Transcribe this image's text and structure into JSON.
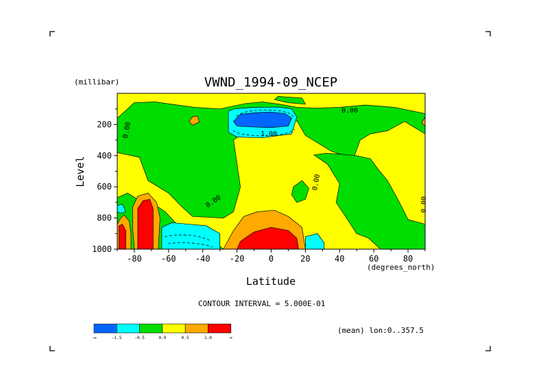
{
  "chart_data": {
    "type": "heatmap",
    "title": "VWND_1994-09_NCEP",
    "ylabel": "Level",
    "yunit": "(millibar)",
    "xlabel": "Latitude",
    "xunit": "(degrees_north)",
    "xlim": [
      -90,
      90
    ],
    "ylim": [
      1000,
      0
    ],
    "xticks": [
      -80,
      -60,
      -40,
      -20,
      0,
      20,
      40,
      60,
      80
    ],
    "yticks": [
      200,
      400,
      600,
      800,
      1000
    ],
    "contour_interval_text": "CONTOUR INTERVAL = 5.000E-01",
    "mean_text": "(mean) lon:0..357.5",
    "contour_labels": [
      "0.00",
      "0.00",
      "1.00",
      "0.00",
      "0.00",
      "0.00"
    ],
    "colorbar": {
      "colors": [
        "#0066ff",
        "#00ffff",
        "#00dd00",
        "#ffff00",
        "#ffaa00",
        "#ff0000"
      ],
      "labels": [
        "-∞",
        "-1.5",
        "-0.5",
        "0.0",
        "0.5",
        "1.0",
        "∞"
      ]
    },
    "regions": [
      {
        "level": "green",
        "color": "#00dd00",
        "points": [
          [
            -90,
            380
          ],
          [
            -77,
            410
          ],
          [
            -72,
            560
          ],
          [
            -60,
            640
          ],
          [
            -52,
            730
          ],
          [
            -46,
            790
          ],
          [
            -28,
            800
          ],
          [
            -22,
            760
          ],
          [
            -18,
            600
          ],
          [
            -22,
            300
          ],
          [
            -12,
            220
          ],
          [
            -5,
            240
          ],
          [
            3,
            210
          ],
          [
            15,
            175
          ],
          [
            20,
            270
          ],
          [
            35,
            370
          ],
          [
            48,
            420
          ],
          [
            52,
            300
          ],
          [
            58,
            260
          ],
          [
            68,
            240
          ],
          [
            78,
            180
          ],
          [
            90,
            260
          ],
          [
            90,
            130
          ],
          [
            72,
            90
          ],
          [
            55,
            75
          ],
          [
            40,
            90
          ],
          [
            26,
            95
          ],
          [
            15,
            90
          ],
          [
            5,
            70
          ],
          [
            -5,
            55
          ],
          [
            -15,
            65
          ],
          [
            -30,
            100
          ],
          [
            -45,
            90
          ],
          [
            -68,
            55
          ],
          [
            -80,
            60
          ],
          [
            -86,
            120
          ],
          [
            -90,
            160
          ]
        ]
      },
      {
        "level": "green",
        "color": "#00dd00",
        "points": [
          [
            25,
            395
          ],
          [
            33,
            455
          ],
          [
            40,
            580
          ],
          [
            38,
            700
          ],
          [
            44,
            800
          ],
          [
            50,
            900
          ],
          [
            57,
            930
          ],
          [
            64,
            1000
          ],
          [
            90,
            1000
          ],
          [
            90,
            840
          ],
          [
            80,
            810
          ],
          [
            75,
            700
          ],
          [
            68,
            560
          ],
          [
            62,
            480
          ],
          [
            58,
            420
          ],
          [
            50,
            400
          ],
          [
            40,
            390
          ],
          [
            32,
            385
          ]
        ]
      },
      {
        "level": "green",
        "color": "#00dd00",
        "points": [
          [
            -90,
            670
          ],
          [
            -84,
            640
          ],
          [
            -78,
            680
          ],
          [
            -70,
            700
          ],
          [
            -62,
            760
          ],
          [
            -56,
            830
          ],
          [
            -50,
            900
          ],
          [
            -40,
            930
          ],
          [
            -32,
            960
          ],
          [
            -28,
            1000
          ],
          [
            -90,
            1000
          ]
        ]
      },
      {
        "level": "green",
        "color": "#00dd00",
        "points": [
          [
            13,
            600
          ],
          [
            18,
            560
          ],
          [
            22,
            610
          ],
          [
            20,
            680
          ],
          [
            15,
            700
          ],
          [
            12,
            650
          ]
        ]
      },
      {
        "level": "green",
        "color": "#00dd00",
        "points": [
          [
            4,
            20
          ],
          [
            18,
            30
          ],
          [
            20,
            70
          ],
          [
            10,
            60
          ],
          [
            2,
            40
          ]
        ]
      },
      {
        "level": "cyan",
        "color": "#00ffff",
        "points": [
          [
            -25,
            115
          ],
          [
            -22,
            100
          ],
          [
            -10,
            90
          ],
          [
            5,
            88
          ],
          [
            12,
            100
          ],
          [
            15,
            150
          ],
          [
            12,
            260
          ],
          [
            -5,
            285
          ],
          [
            -20,
            280
          ],
          [
            -25,
            250
          ]
        ]
      },
      {
        "level": "cyan",
        "color": "#00ffff",
        "points": [
          [
            -64,
            860
          ],
          [
            -58,
            830
          ],
          [
            -48,
            840
          ],
          [
            -38,
            850
          ],
          [
            -30,
            900
          ],
          [
            -30,
            1000
          ],
          [
            -64,
            1000
          ]
        ]
      },
      {
        "level": "cyan",
        "color": "#00ffff",
        "points": [
          [
            -90,
            720
          ],
          [
            -87,
            710
          ],
          [
            -85,
            760
          ],
          [
            -88,
            770
          ],
          [
            -90,
            760
          ]
        ]
      },
      {
        "level": "cyan",
        "color": "#00ffff",
        "points": [
          [
            20,
            920
          ],
          [
            27,
            900
          ],
          [
            31,
            960
          ],
          [
            31,
            1000
          ],
          [
            20,
            1000
          ]
        ]
      },
      {
        "level": "blue",
        "color": "#0066ff",
        "points": [
          [
            -22,
            180
          ],
          [
            -18,
            135
          ],
          [
            -10,
            125
          ],
          [
            0,
            120
          ],
          [
            8,
            130
          ],
          [
            12,
            160
          ],
          [
            10,
            210
          ],
          [
            0,
            220
          ],
          [
            -12,
            215
          ],
          [
            -20,
            210
          ]
        ]
      },
      {
        "level": "orange",
        "color": "#ffaa00",
        "points": [
          [
            -28,
            1000
          ],
          [
            -22,
            880
          ],
          [
            -16,
            790
          ],
          [
            -8,
            760
          ],
          [
            2,
            750
          ],
          [
            10,
            790
          ],
          [
            18,
            860
          ],
          [
            20,
            1000
          ]
        ]
      },
      {
        "level": "orange",
        "color": "#ffaa00",
        "points": [
          [
            -88,
            800
          ],
          [
            -86,
            780
          ],
          [
            -83,
            820
          ],
          [
            -82,
            900
          ],
          [
            -82,
            1000
          ],
          [
            -90,
            1000
          ],
          [
            -90,
            840
          ]
        ]
      },
      {
        "level": "orange",
        "color": "#ffaa00",
        "points": [
          [
            -81,
            730
          ],
          [
            -78,
            660
          ],
          [
            -72,
            640
          ],
          [
            -67,
            700
          ],
          [
            -65,
            800
          ],
          [
            -66,
            1000
          ],
          [
            -80,
            1000
          ],
          [
            -81,
            860
          ]
        ]
      },
      {
        "level": "orange",
        "color": "#ffaa00",
        "points": [
          [
            -48,
            180
          ],
          [
            -46,
            150
          ],
          [
            -43,
            145
          ],
          [
            -42,
            185
          ],
          [
            -46,
            205
          ]
        ]
      },
      {
        "level": "orange",
        "color": "#ffaa00",
        "points": [
          [
            88,
            190
          ],
          [
            90,
            150
          ],
          [
            90,
            210
          ]
        ]
      },
      {
        "level": "red",
        "color": "#ff0000",
        "points": [
          [
            -20,
            1000
          ],
          [
            -18,
            950
          ],
          [
            -10,
            890
          ],
          [
            0,
            860
          ],
          [
            10,
            880
          ],
          [
            15,
            930
          ],
          [
            16,
            1000
          ]
        ]
      },
      {
        "level": "red",
        "color": "#ff0000",
        "points": [
          [
            -89,
            850
          ],
          [
            -87,
            840
          ],
          [
            -85,
            880
          ],
          [
            -85,
            1000
          ],
          [
            -89,
            1000
          ]
        ]
      },
      {
        "level": "red",
        "color": "#ff0000",
        "points": [
          [
            -78,
            740
          ],
          [
            -75,
            690
          ],
          [
            -71,
            680
          ],
          [
            -69,
            740
          ],
          [
            -69,
            1000
          ],
          [
            -78,
            1000
          ]
        ]
      }
    ]
  }
}
